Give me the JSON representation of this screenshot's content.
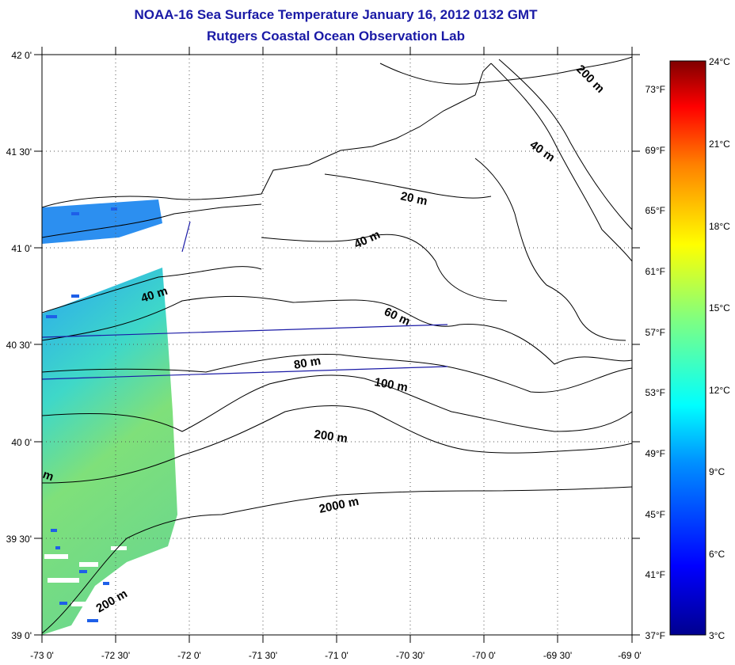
{
  "header": {
    "title": "NOAA-16 Sea Surface Temperature January 16, 2012 0132 GMT",
    "subtitle": "Rutgers Coastal Ocean Observation Lab"
  },
  "axes": {
    "lon_labels": [
      "-73 0'",
      "-72 30'",
      "-72 0'",
      "-71 30'",
      "-71 0'",
      "-70 30'",
      "-70 0'",
      "-69 30'",
      "-69 0'"
    ],
    "lat_labels": [
      "42 0'",
      "41 30'",
      "41 0'",
      "40 30'",
      "40 0'",
      "39 30'",
      "39 0'"
    ]
  },
  "colorbar": {
    "celsius_labels": [
      "24°C",
      "21°C",
      "18°C",
      "15°C",
      "12°C",
      "9°C",
      "6°C",
      "3°C"
    ],
    "fahrenheit_labels": [
      "73°F",
      "69°F",
      "65°F",
      "61°F",
      "57°F",
      "53°F",
      "49°F",
      "45°F",
      "41°F",
      "37°F"
    ]
  },
  "contours": {
    "labels": [
      "200 m",
      "40 m",
      "20 m",
      "40 m",
      "40 m",
      "60 m",
      "80 m",
      "100 m",
      "200 m",
      "2000 m",
      "200 m",
      "m"
    ]
  },
  "colors": {
    "title": "#1a1aa6",
    "track_line": "#1a1aa6"
  }
}
